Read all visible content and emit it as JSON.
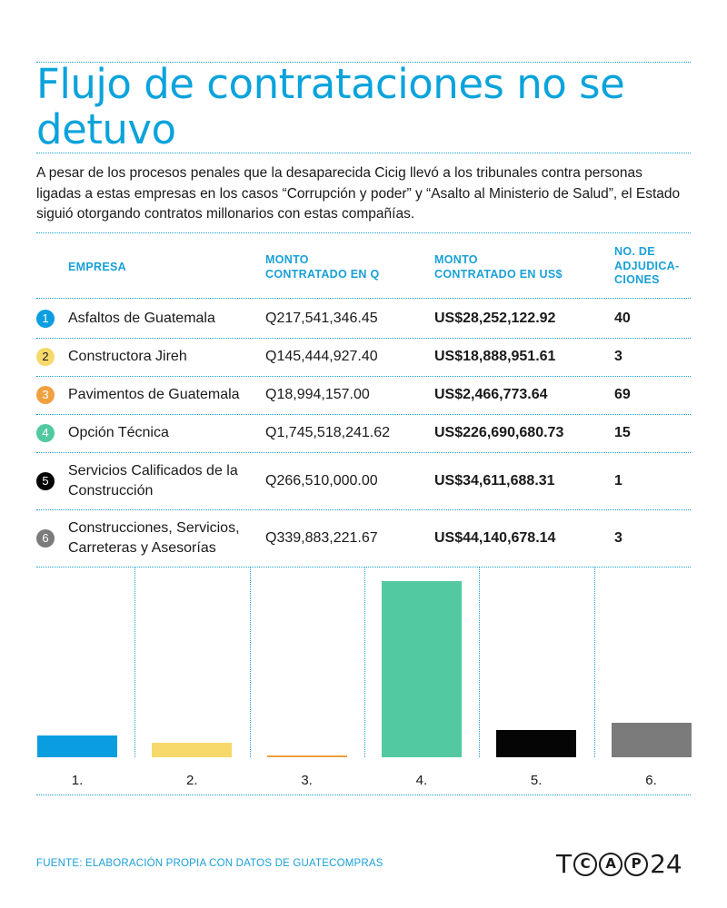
{
  "title": "Flujo de contrataciones no se detuvo",
  "intro": "A pesar de los procesos penales que la desaparecida Cicig llevó a los tribunales contra personas ligadas a estas empresas en los casos “Corrupción y poder” y “Asalto al Ministerio de Salud”, el Estado siguió otorgando contratos millonarios con estas compañías.",
  "table": {
    "headers": {
      "empresa": "EMPRESA",
      "monto_q": "MONTO CONTRATADO EN Q",
      "monto_usd": "MONTO CONTRATADO EN US$",
      "adjudicaciones": "NO. DE ADJUDICA-CIONES"
    },
    "rows": [
      {
        "num": "1",
        "empresa": "Asfaltos de Guatemala",
        "monto_q": "Q217,541,346.45",
        "monto_usd": "US$28,252,122.92",
        "adjudicaciones": "40",
        "color": "#0a9ee0"
      },
      {
        "num": "2",
        "empresa": "Constructora Jireh",
        "monto_q": "Q145,444,927.40",
        "monto_usd": "US$18,888,951.61",
        "adjudicaciones": "3",
        "color": "#f7d96b"
      },
      {
        "num": "3",
        "empresa": "Pavimentos de Guatemala",
        "monto_q": "Q18,994,157.00",
        "monto_usd": "US$2,466,773.64",
        "adjudicaciones": "69",
        "color": "#f0a040"
      },
      {
        "num": "4",
        "empresa": "Opción Técnica",
        "monto_q": "Q1,745,518,241.62",
        "monto_usd": "US$226,690,680.73",
        "adjudicaciones": "15",
        "color": "#52c9a0"
      },
      {
        "num": "5",
        "empresa": "Servicios Calificados de la Construcción",
        "monto_q": "Q266,510,000.00",
        "monto_usd": "US$34,611,688.31",
        "adjudicaciones": "1",
        "color": "#050505"
      },
      {
        "num": "6",
        "empresa": "Construcciones, Servicios, Carreteras y Asesorías",
        "monto_q": "Q339,883,221.67",
        "monto_usd": "US$44,140,678.14",
        "adjudicaciones": "3",
        "color": "#7b7b7b"
      }
    ]
  },
  "chart_data": {
    "type": "bar",
    "categories": [
      "1.",
      "2.",
      "3.",
      "4.",
      "5.",
      "6."
    ],
    "values": [
      28252122.92,
      18888951.61,
      2466773.64,
      226690680.73,
      34611688.31,
      44140678.14
    ],
    "colors": [
      "#0a9ee0",
      "#f7d96b",
      "#f0a040",
      "#52c9a0",
      "#050505",
      "#7b7b7b"
    ],
    "ylim": [
      0,
      226690680.73
    ],
    "grid": false,
    "title": "",
    "xlabel": "",
    "ylabel": ""
  },
  "source": "FUENTE: ELABORACIÓN PROPIA CON DATOS DE GUATECOMPRAS",
  "logo": {
    "t": "T",
    "c": "C",
    "a": "A",
    "p": "P",
    "num": "24"
  }
}
